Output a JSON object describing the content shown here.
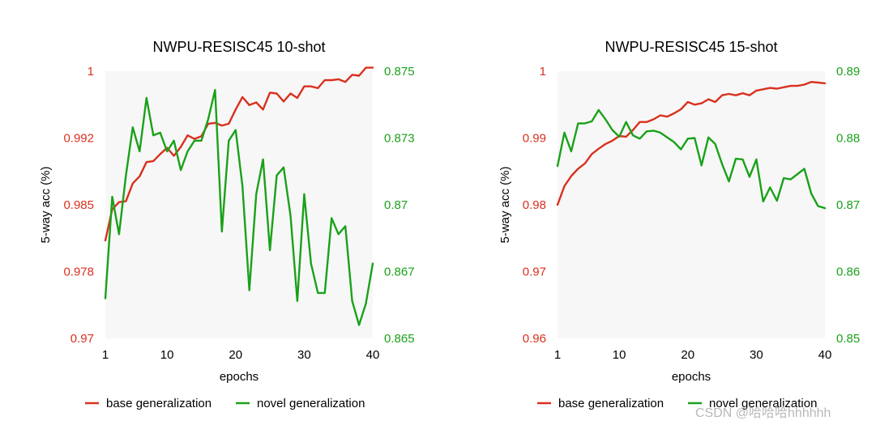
{
  "watermark": "CSDN @哈哈哈hhhhhh",
  "colors": {
    "base": "#d9301e",
    "novel": "#1aa11a",
    "plot_bg": "#f7f7f7"
  },
  "chart_data": [
    {
      "type": "line",
      "title": "NWPU-RESISC45 10-shot",
      "xlabel": "epochs",
      "ylabel": "5-way acc (%)",
      "xlim": [
        1,
        40
      ],
      "x_ticks": [
        1,
        10,
        20,
        30,
        40
      ],
      "y_left": {
        "range": [
          0.97,
          1.0
        ],
        "ticks": [
          0.97,
          0.9775,
          0.985,
          0.9925,
          1.0
        ],
        "tick_labels": [
          "0.97",
          "0.978",
          "0.985",
          "0.992",
          "1"
        ]
      },
      "y_right": {
        "range": [
          0.865,
          0.875
        ],
        "ticks": [
          0.865,
          0.8675,
          0.87,
          0.8725,
          0.875
        ],
        "tick_labels": [
          "0.865",
          "0.867",
          "0.87",
          "0.873",
          "0.875"
        ]
      },
      "legend_placement": "bottom",
      "grid": false,
      "x": [
        1,
        2,
        3,
        4,
        5,
        6,
        7,
        8,
        9,
        10,
        11,
        12,
        13,
        14,
        15,
        16,
        17,
        18,
        19,
        20,
        21,
        22,
        23,
        24,
        25,
        26,
        27,
        28,
        29,
        30,
        31,
        32,
        33,
        34,
        35,
        36,
        37,
        38,
        39,
        40
      ],
      "series": [
        {
          "name": "base generalization",
          "axis": "left",
          "values": [
            0.981,
            0.9845,
            0.9853,
            0.9854,
            0.9874,
            0.9882,
            0.9898,
            0.9899,
            0.9907,
            0.9914,
            0.9905,
            0.9915,
            0.9928,
            0.9924,
            0.9927,
            0.9941,
            0.9942,
            0.9939,
            0.9941,
            0.9957,
            0.9971,
            0.9962,
            0.9965,
            0.9957,
            0.9976,
            0.9975,
            0.9966,
            0.9975,
            0.997,
            0.9983,
            0.9983,
            0.9981,
            0.999,
            0.999,
            0.9991,
            0.9988,
            0.9996,
            0.9995,
            1.0004,
            1.0004
          ]
        },
        {
          "name": "novel generalization",
          "axis": "right",
          "values": [
            0.8665,
            0.8703,
            0.8689,
            0.8711,
            0.8729,
            0.872,
            0.874,
            0.8726,
            0.8727,
            0.872,
            0.8724,
            0.8713,
            0.872,
            0.8724,
            0.8724,
            0.8732,
            0.8743,
            0.869,
            0.8724,
            0.8728,
            0.8707,
            0.8668,
            0.8704,
            0.8717,
            0.8683,
            0.8711,
            0.8714,
            0.8696,
            0.8664,
            0.8704,
            0.8678,
            0.8667,
            0.8667,
            0.8695,
            0.8689,
            0.8692,
            0.8664,
            0.8655,
            0.8663,
            0.8678
          ]
        }
      ]
    },
    {
      "type": "line",
      "title": "NWPU-RESISC45 15-shot",
      "xlabel": "epochs",
      "ylabel": "5-way acc (%)",
      "xlim": [
        1,
        40
      ],
      "x_ticks": [
        1,
        10,
        20,
        30,
        40
      ],
      "y_left": {
        "range": [
          0.96,
          1.0
        ],
        "ticks": [
          0.96,
          0.97,
          0.98,
          0.99,
          1.0
        ],
        "tick_labels": [
          "0.96",
          "0.97",
          "0.98",
          "0.99",
          "1"
        ]
      },
      "y_right": {
        "range": [
          0.85,
          0.89
        ],
        "ticks": [
          0.85,
          0.86,
          0.87,
          0.88,
          0.89
        ],
        "tick_labels": [
          "0.85",
          "0.86",
          "0.87",
          "0.88",
          "0.89"
        ]
      },
      "legend_placement": "bottom",
      "grid": false,
      "x": [
        1,
        2,
        3,
        4,
        5,
        6,
        7,
        8,
        9,
        10,
        11,
        12,
        13,
        14,
        15,
        16,
        17,
        18,
        19,
        20,
        21,
        22,
        23,
        24,
        25,
        26,
        27,
        28,
        29,
        30,
        31,
        32,
        33,
        34,
        35,
        36,
        37,
        38,
        39,
        40
      ],
      "series": [
        {
          "name": "base generalization",
          "axis": "left",
          "values": [
            0.98,
            0.9828,
            0.9843,
            0.9854,
            0.9862,
            0.9876,
            0.9884,
            0.9891,
            0.9896,
            0.9903,
            0.9902,
            0.9912,
            0.9924,
            0.9924,
            0.9928,
            0.9934,
            0.9932,
            0.9937,
            0.9943,
            0.9954,
            0.995,
            0.9952,
            0.9958,
            0.9954,
            0.9964,
            0.9966,
            0.9964,
            0.9967,
            0.9964,
            0.9971,
            0.9973,
            0.9975,
            0.9974,
            0.9976,
            0.9978,
            0.9978,
            0.998,
            0.9984,
            0.9983,
            0.9982
          ]
        },
        {
          "name": "novel generalization",
          "axis": "right",
          "values": [
            0.8758,
            0.8808,
            0.878,
            0.8822,
            0.8822,
            0.8825,
            0.8842,
            0.8828,
            0.8812,
            0.8802,
            0.8824,
            0.8804,
            0.8799,
            0.881,
            0.8811,
            0.8808,
            0.8801,
            0.8794,
            0.8783,
            0.8799,
            0.88,
            0.8759,
            0.8801,
            0.8791,
            0.8761,
            0.8735,
            0.8769,
            0.8768,
            0.8742,
            0.8768,
            0.8705,
            0.8726,
            0.8706,
            0.874,
            0.8738,
            0.8746,
            0.8754,
            0.8717,
            0.8698,
            0.8695
          ]
        }
      ]
    }
  ]
}
